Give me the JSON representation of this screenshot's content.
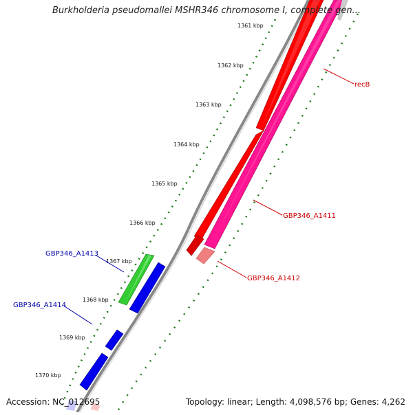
{
  "title": "Burkholderia pseudomallei MSHR346 chromosome I, complete gen...",
  "accession": "Accession: NC_012695",
  "summary": "Topology: linear; Length: 4,098,576 bp; Genes: 4,262",
  "scale_labels": [
    "1361 kbp",
    "1362 kbp",
    "1363 kbp",
    "1364 kbp",
    "1365 kbp",
    "1366 kbp",
    "1367 kbp",
    "1368 kbp",
    "1369 kbp",
    "1370 kbp"
  ],
  "genes": [
    {
      "id": "recB",
      "label": "recB",
      "color": "#cc0000",
      "fill": "#ff0000"
    },
    {
      "id": "GBP346_A1411",
      "label": "GBP346_A1411",
      "color": "#cc0000",
      "fill": "#ff1493"
    },
    {
      "id": "GBP346_A1412",
      "label": "GBP346_A1412",
      "color": "#cc0000",
      "fill": "#f08080"
    },
    {
      "id": "GBP346_A1413",
      "label": "GBP346_A1413",
      "color": "#0000aa",
      "fill": "#33cc33"
    },
    {
      "id": "GBP346_A1414",
      "label": "GBP346_A1414",
      "color": "#0000aa",
      "fill": "#0000ee"
    }
  ],
  "colors": {
    "backbone": "#888888",
    "tick_dots": "#1a7a1a",
    "forward_red": "#ff0000",
    "forward_pink": "#ff1493",
    "reverse_blue": "#0000ee",
    "reverse_green": "#33cc33"
  }
}
